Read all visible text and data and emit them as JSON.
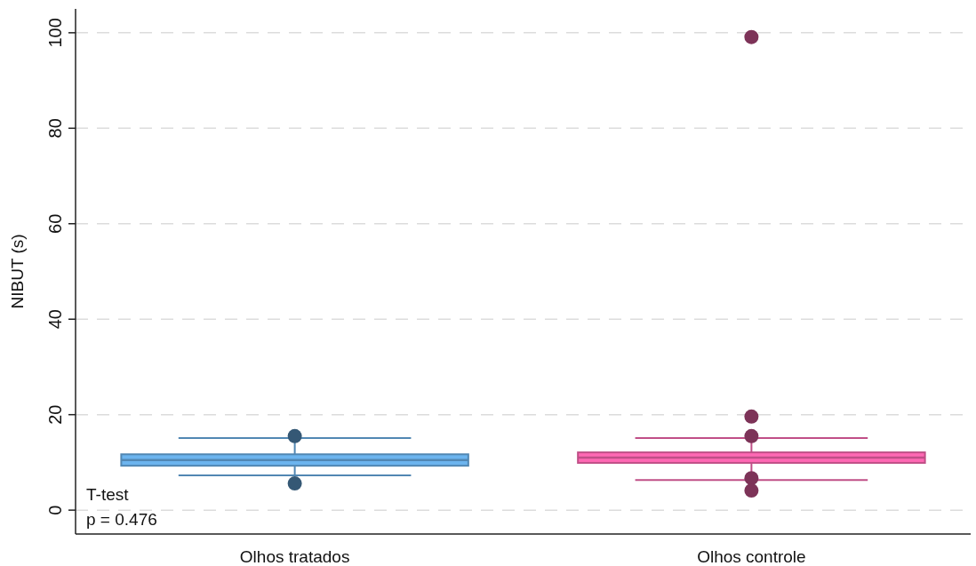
{
  "chart_data": {
    "type": "box",
    "ylabel": "NIBUT (s)",
    "categories": [
      "Olhos tratados",
      "Olhos controle"
    ],
    "boxes": [
      {
        "low": 7.3,
        "q1": 9.3,
        "median": 10.5,
        "q3": 11.7,
        "high": 15.1,
        "outliers": [
          15.5,
          5.6
        ]
      },
      {
        "low": 6.3,
        "q1": 9.9,
        "median": 11.0,
        "q3": 12.1,
        "high": 15.1,
        "outliers": [
          99.1,
          19.6,
          15.5,
          6.7,
          4.1
        ]
      }
    ],
    "colors": [
      "#6cb4ee",
      "#ff69b4"
    ],
    "ylim": [
      -5,
      105
    ],
    "yticks": [
      0,
      20,
      40,
      60,
      80,
      100
    ],
    "grid": "y",
    "annotations": [
      "T-test",
      "p = 0.476"
    ]
  }
}
